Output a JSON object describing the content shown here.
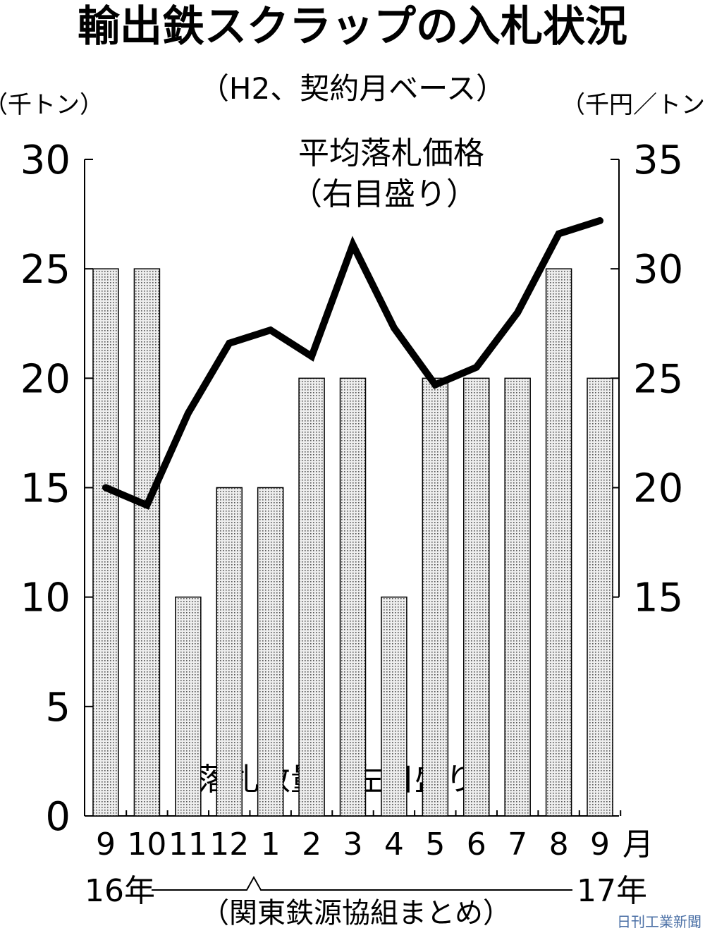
{
  "chart_data": {
    "type": "bar",
    "title": "輸出鉄スクラップの入札状況",
    "subtitle": "（H2、契約月ベース）",
    "y_label": "（千トン）",
    "y2_label": "（千円／トン）",
    "categories": [
      "9",
      "10",
      "11",
      "12",
      "1",
      "2",
      "3",
      "4",
      "5",
      "6",
      "7",
      "8",
      "9"
    ],
    "x_unit": "月",
    "start_year": "16年",
    "end_year": "17年",
    "series": [
      {
        "name": "落札数量（左目盛り）",
        "type": "bar",
        "color": "#555555",
        "values": [
          25,
          25,
          10,
          15,
          15,
          20,
          20,
          10,
          20,
          20,
          20,
          25,
          20
        ]
      },
      {
        "name": "平均落札価格",
        "note": "（右目盛り）",
        "type": "line",
        "axis": "y2",
        "color": "#000000",
        "values": [
          20.0,
          19.2,
          23.4,
          26.6,
          27.2,
          26.0,
          31.1,
          27.3,
          24.7,
          25.5,
          28.0,
          31.6,
          32.2
        ]
      }
    ],
    "ylim": [
      0,
      30
    ],
    "yticks": [
      0,
      5,
      10,
      15,
      20,
      25,
      30
    ],
    "y2lim": [
      5,
      35
    ],
    "y2ticks": [
      15,
      20,
      25,
      30,
      35
    ],
    "source": "（関東鉄源協組まとめ）",
    "credit": "日刊工業新聞"
  }
}
